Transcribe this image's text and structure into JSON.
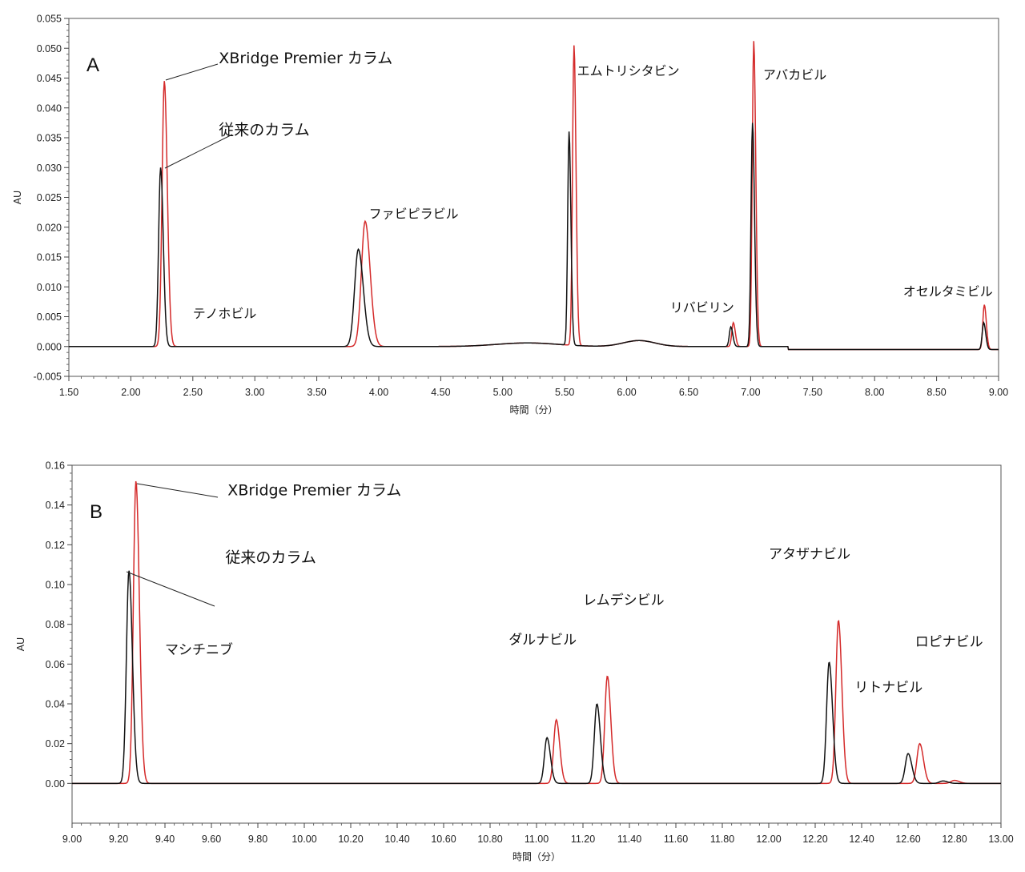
{
  "chart_data": [
    {
      "panel_label": "A",
      "type": "line",
      "xlabel": "時間（分）",
      "ylabel": "AU",
      "xlim": [
        1.5,
        9.0
      ],
      "ylim": [
        -0.005,
        0.055
      ],
      "x_ticks": [
        "1.50",
        "2.00",
        "2.50",
        "3.00",
        "3.50",
        "4.00",
        "4.50",
        "5.00",
        "5.50",
        "6.00",
        "6.50",
        "7.00",
        "7.50",
        "8.00",
        "8.50",
        "9.00"
      ],
      "y_ticks": [
        "-0.005",
        "0.000",
        "0.005",
        "0.010",
        "0.015",
        "0.020",
        "0.025",
        "0.030",
        "0.035",
        "0.040",
        "0.045",
        "0.050",
        "0.055"
      ],
      "baseline": 0.0,
      "series": [
        {
          "name": "XBridge Premier カラム",
          "color": "#d42a2a",
          "peaks": [
            {
              "x": 2.27,
              "y": 0.0445,
              "width": 0.018
            },
            {
              "x": 3.89,
              "y": 0.021,
              "width": 0.03
            },
            {
              "x": 5.575,
              "y": 0.0503,
              "width": 0.012
            },
            {
              "x": 6.86,
              "y": 0.004,
              "width": 0.012
            },
            {
              "x": 7.025,
              "y": 0.0512,
              "width": 0.012
            },
            {
              "x": 8.885,
              "y": 0.0075,
              "width": 0.012
            }
          ]
        },
        {
          "name": "従来のカラム",
          "color": "#111111",
          "peaks": [
            {
              "x": 2.24,
              "y": 0.03,
              "width": 0.016
            },
            {
              "x": 3.835,
              "y": 0.0163,
              "width": 0.03
            },
            {
              "x": 5.535,
              "y": 0.0358,
              "width": 0.011
            },
            {
              "x": 6.84,
              "y": 0.0033,
              "width": 0.012
            },
            {
              "x": 7.015,
              "y": 0.0375,
              "width": 0.012
            },
            {
              "x": 8.88,
              "y": 0.0045,
              "width": 0.012
            }
          ]
        }
      ],
      "annotations": [
        {
          "text": "テノホビル",
          "x": 2.5,
          "y": 0.0048
        },
        {
          "text": "ファビピラビル",
          "x": 3.92,
          "y": 0.0215
        },
        {
          "text": "エムトリシタビン",
          "x": 5.6,
          "y": 0.0455
        },
        {
          "text": "リバビリン",
          "x": 6.35,
          "y": 0.0058
        },
        {
          "text": "アバカビル",
          "x": 7.1,
          "y": 0.0448
        },
        {
          "text": "オセルタミビル",
          "x": 8.23,
          "y": 0.0085
        }
      ],
      "callouts": [
        {
          "text": "XBridge Premier カラム",
          "x": 2.71,
          "y": 0.0475
        },
        {
          "text": "従来のカラム",
          "x": 2.71,
          "y": 0.0355
        }
      ]
    },
    {
      "panel_label": "B",
      "type": "line",
      "xlabel": "時間（分）",
      "ylabel": "AU",
      "xlim": [
        9.0,
        13.0
      ],
      "ylim": [
        -0.02,
        0.16
      ],
      "x_ticks": [
        "9.00",
        "9.20",
        "9.40",
        "9.60",
        "9.80",
        "10.00",
        "10.20",
        "10.40",
        "10.60",
        "10.80",
        "11.00",
        "11.20",
        "11.40",
        "11.60",
        "11.80",
        "12.00",
        "12.20",
        "12.40",
        "12.60",
        "12.80",
        "13.00"
      ],
      "y_ticks": [
        "0.00",
        "0.02",
        "0.04",
        "0.06",
        "0.08",
        "0.10",
        "0.12",
        "0.14",
        "0.16"
      ],
      "baseline": 0.0,
      "series": [
        {
          "name": "XBridge Premier カラム",
          "color": "#d42a2a",
          "peaks": [
            {
              "x": 9.275,
              "y": 0.152,
              "width": 0.011
            },
            {
              "x": 11.085,
              "y": 0.032,
              "width": 0.011
            },
            {
              "x": 11.305,
              "y": 0.054,
              "width": 0.011
            },
            {
              "x": 12.3,
              "y": 0.082,
              "width": 0.011
            },
            {
              "x": 12.65,
              "y": 0.02,
              "width": 0.012
            },
            {
              "x": 12.8,
              "y": 0.0015,
              "width": 0.015
            }
          ]
        },
        {
          "name": "従来のカラム",
          "color": "#111111",
          "peaks": [
            {
              "x": 9.245,
              "y": 0.107,
              "width": 0.011
            },
            {
              "x": 11.045,
              "y": 0.023,
              "width": 0.011
            },
            {
              "x": 11.26,
              "y": 0.04,
              "width": 0.011
            },
            {
              "x": 12.26,
              "y": 0.061,
              "width": 0.011
            },
            {
              "x": 12.6,
              "y": 0.015,
              "width": 0.012
            },
            {
              "x": 12.75,
              "y": 0.0012,
              "width": 0.015
            }
          ]
        }
      ],
      "annotations": [
        {
          "text": "マシチニブ",
          "x": 9.4,
          "y": 0.065
        },
        {
          "text": "ダルナビル",
          "x": 10.88,
          "y": 0.07
        },
        {
          "text": "レムデシビル",
          "x": 11.2,
          "y": 0.09
        },
        {
          "text": "アタザナビル",
          "x": 12.0,
          "y": 0.113
        },
        {
          "text": "リトナビル",
          "x": 12.37,
          "y": 0.046
        },
        {
          "text": "ロピナビル",
          "x": 12.63,
          "y": 0.069
        }
      ],
      "callouts": [
        {
          "text": "XBridge Premier カラム",
          "x": 9.67,
          "y": 0.145
        },
        {
          "text": "従来のカラム",
          "x": 9.66,
          "y": 0.111
        }
      ]
    }
  ]
}
